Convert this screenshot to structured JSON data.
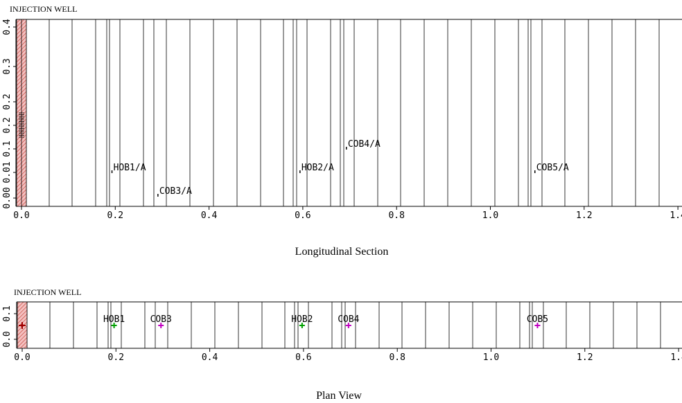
{
  "longitudinal": {
    "header": "INJECTION WELL",
    "caption": "Longitudinal Section",
    "x_ticks": [
      "0.0",
      "0.2",
      "0.4",
      "0.6",
      "0.8",
      "1.0",
      "1.2",
      "1.4"
    ],
    "y_ticks": [
      "0.00",
      "0.01",
      "0.1",
      "0.2",
      "0.2",
      "0.3",
      "0.4"
    ],
    "observation_points": [
      {
        "label": "HOB1/A",
        "x": 0.193,
        "y": 0.07
      },
      {
        "label": "COB3/A",
        "x": 0.291,
        "y": 0.03
      },
      {
        "label": "HOB2/A",
        "x": 0.594,
        "y": 0.07
      },
      {
        "label": "COB4/A",
        "x": 0.693,
        "y": 0.11
      },
      {
        "label": "COB5/A",
        "x": 1.095,
        "y": 0.07
      }
    ]
  },
  "plan": {
    "header": "INJECTION WELL",
    "caption": "Plan View",
    "x_ticks": [
      "0.0",
      "0.2",
      "0.4",
      "0.6",
      "0.8",
      "1.0",
      "1.2",
      "1.4"
    ],
    "y_ticks": [
      "0.0",
      "0.1"
    ],
    "markers": [
      {
        "label": "HOB1",
        "x": 0.196,
        "color": "#00a000"
      },
      {
        "label": "COB3",
        "x": 0.296,
        "color": "#c000c0"
      },
      {
        "label": "HOB2",
        "x": 0.597,
        "color": "#00a000"
      },
      {
        "label": "COB4",
        "x": 0.696,
        "color": "#c000c0"
      },
      {
        "label": "COB5",
        "x": 1.099,
        "color": "#c000c0"
      }
    ],
    "well_marker_label": "★"
  },
  "colors": {
    "well_fill": "#f4c0c0",
    "well_hatch": "#c0392b",
    "grid_line": "#000000",
    "hob_marker": "#00a000",
    "cob_marker": "#c000c0",
    "well_point": "#a00000"
  }
}
